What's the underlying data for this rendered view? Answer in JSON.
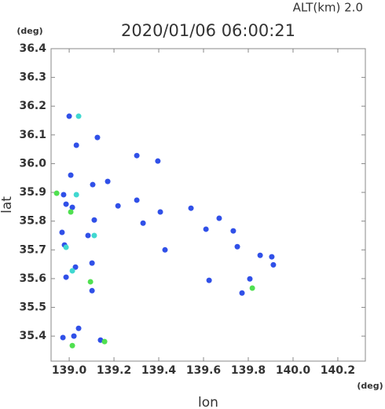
{
  "chart_data": {
    "type": "scatter",
    "title": "2020/01/06 06:00:21",
    "subtitle": "ALT(km) 2.0",
    "x_unit": "(deg)",
    "y_unit": "(deg)",
    "xlabel": "lon",
    "ylabel": "lat",
    "xlim": [
      138.919,
      140.323
    ],
    "ylim": [
      35.313,
      36.4
    ],
    "xticks": [
      {
        "value": 139.0,
        "label": "139.0"
      },
      139.2,
      139.4,
      139.6,
      139.8,
      {
        "value": 140.0,
        "label": "140.0"
      },
      140.2
    ],
    "yticks": [
      35.4,
      35.5,
      35.6,
      35.7,
      35.8,
      35.9,
      {
        "value": 36.0,
        "label": "36.0"
      },
      36.1,
      36.2,
      36.3,
      36.4
    ],
    "series": [
      {
        "color": "#3050e8",
        "x": [
          139.0,
          139.032,
          139.007,
          138.975,
          138.986,
          139.014,
          138.968,
          138.979,
          139.028,
          138.986,
          138.972,
          139.021,
          139.14,
          139.102,
          139.112,
          139.172,
          139.126,
          139.302,
          139.396,
          139.407,
          139.428,
          139.544,
          139.611,
          139.67,
          139.733,
          139.751,
          139.853,
          139.905,
          139.912,
          139.807,
          139.772,
          139.302,
          139.33,
          139.218,
          139.105,
          139.084,
          139.625,
          139.042,
          139.102
        ],
        "values": [
          36.165,
          36.064,
          35.96,
          35.892,
          35.859,
          35.848,
          35.761,
          35.717,
          35.64,
          35.605,
          35.395,
          35.4,
          35.386,
          35.558,
          35.804,
          35.938,
          36.091,
          36.028,
          36.009,
          35.832,
          35.7,
          35.845,
          35.772,
          35.81,
          35.766,
          35.711,
          35.681,
          35.676,
          35.648,
          35.599,
          35.55,
          35.873,
          35.793,
          35.853,
          35.927,
          35.75,
          35.594,
          35.427,
          35.654
        ]
      },
      {
        "color": "#40d8d0",
        "x": [
          139.014,
          139.032,
          138.986,
          139.112,
          139.042
        ],
        "values": [
          35.627,
          35.892,
          35.709,
          35.75,
          36.165
        ]
      },
      {
        "color": "#50e050",
        "x": [
          139.014,
          139.158,
          139.007,
          139.818,
          139.095,
          138.944
        ],
        "values": [
          35.367,
          35.381,
          35.832,
          35.567,
          35.589,
          35.897
        ]
      }
    ]
  }
}
